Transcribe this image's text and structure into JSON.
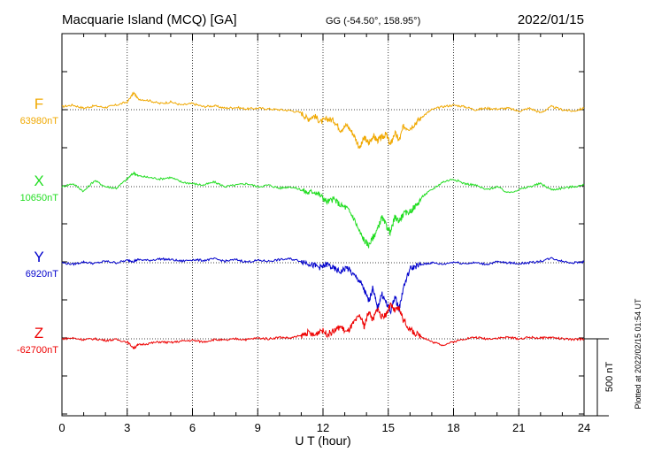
{
  "header": {
    "station": "Macquarie Island (MCQ)  [GA]",
    "coords": "GG (-54.50°, 158.95°)",
    "date": "2022/01/15"
  },
  "footer": {
    "plotted": "Plotted at 2022/02/15 01:54 UT"
  },
  "chart_data": {
    "type": "line",
    "title": "Macquarie Island (MCQ)  [GA]",
    "xlabel": "U T (hour)",
    "ylabel": "",
    "xlim": [
      0,
      24
    ],
    "xticks": [
      0,
      3,
      6,
      9,
      12,
      15,
      18,
      21,
      24
    ],
    "grid": true,
    "scale_bar": {
      "label": "500 nT",
      "value_nT": 500
    },
    "series": [
      {
        "name": "F",
        "baseline_label": "63980nT",
        "baseline_nT": 63980,
        "color": "#f0a800",
        "x": [
          0,
          0.5,
          1,
          1.5,
          2,
          2.5,
          3,
          3.3,
          3.5,
          4,
          4.5,
          5,
          5.5,
          6,
          6.5,
          7,
          7.5,
          8,
          8.5,
          9,
          9.5,
          10,
          10.5,
          11,
          11.3,
          11.6,
          11.9,
          12.2,
          12.5,
          12.8,
          13.1,
          13.4,
          13.7,
          13.9,
          14.1,
          14.3,
          14.5,
          14.7,
          14.9,
          15.1,
          15.3,
          15.5,
          15.7,
          16,
          16.3,
          16.6,
          17,
          17.5,
          18,
          18.5,
          19,
          19.5,
          20,
          20.5,
          21,
          21.5,
          22,
          22.5,
          23,
          23.5,
          24
        ],
        "y": [
          20,
          30,
          10,
          25,
          15,
          30,
          50,
          110,
          70,
          60,
          40,
          50,
          30,
          40,
          20,
          25,
          10,
          15,
          5,
          10,
          5,
          0,
          -5,
          -20,
          -60,
          -40,
          -80,
          -60,
          -70,
          -130,
          -100,
          -160,
          -250,
          -180,
          -220,
          -170,
          -200,
          -180,
          -160,
          -230,
          -150,
          -200,
          -110,
          -120,
          -80,
          -40,
          0,
          20,
          30,
          20,
          0,
          10,
          5,
          10,
          -10,
          10,
          -20,
          20,
          0,
          -10,
          10
        ]
      },
      {
        "name": "X",
        "baseline_label": "10650nT",
        "baseline_nT": 10650,
        "color": "#22dd22",
        "x": [
          0,
          0.5,
          1,
          1.5,
          2,
          2.5,
          3,
          3.3,
          3.5,
          4,
          4.5,
          5,
          5.5,
          6,
          6.5,
          7,
          7.5,
          8,
          8.5,
          9,
          9.5,
          10,
          10.5,
          11,
          11.3,
          11.6,
          11.9,
          12.2,
          12.5,
          12.8,
          13.1,
          13.4,
          13.7,
          13.9,
          14.1,
          14.3,
          14.5,
          14.7,
          14.9,
          15.1,
          15.3,
          15.5,
          15.7,
          16,
          16.3,
          16.6,
          17,
          17.5,
          18,
          18.5,
          19,
          19.5,
          20,
          20.5,
          21,
          21.5,
          22,
          22.5,
          23,
          23.5,
          24
        ],
        "y": [
          0,
          20,
          -30,
          40,
          0,
          -10,
          50,
          90,
          70,
          60,
          50,
          60,
          30,
          20,
          10,
          30,
          0,
          10,
          20,
          0,
          10,
          -10,
          0,
          -20,
          -40,
          -30,
          -60,
          -100,
          -80,
          -120,
          -140,
          -200,
          -300,
          -350,
          -380,
          -330,
          -280,
          -200,
          -250,
          -300,
          -200,
          -220,
          -180,
          -160,
          -120,
          -60,
          -20,
          30,
          50,
          20,
          10,
          -20,
          0,
          -40,
          -20,
          0,
          20,
          -20,
          -10,
          0,
          10
        ]
      },
      {
        "name": "Y",
        "baseline_label": "6920nT",
        "baseline_nT": 6920,
        "color": "#0000cc",
        "x": [
          0,
          0.5,
          1,
          1.5,
          2,
          2.5,
          3,
          3.3,
          3.5,
          4,
          4.5,
          5,
          5.5,
          6,
          6.5,
          7,
          7.5,
          8,
          8.5,
          9,
          9.5,
          10,
          10.5,
          11,
          11.3,
          11.6,
          11.9,
          12.2,
          12.5,
          12.8,
          13.1,
          13.4,
          13.7,
          13.9,
          14.1,
          14.3,
          14.5,
          14.7,
          14.9,
          15.1,
          15.3,
          15.5,
          15.7,
          16,
          16.3,
          16.6,
          17,
          17.5,
          18,
          18.5,
          19,
          19.5,
          20,
          20.5,
          21,
          21.5,
          22,
          22.5,
          23,
          23.5,
          24
        ],
        "y": [
          0,
          -10,
          5,
          -5,
          10,
          0,
          15,
          10,
          20,
          15,
          25,
          20,
          10,
          20,
          15,
          25,
          10,
          20,
          5,
          15,
          10,
          20,
          25,
          10,
          0,
          -20,
          -30,
          -10,
          -40,
          -60,
          -30,
          -80,
          -120,
          -180,
          -250,
          -160,
          -300,
          -200,
          -260,
          -320,
          -220,
          -300,
          -160,
          -40,
          -20,
          -10,
          0,
          -10,
          5,
          -5,
          0,
          -10,
          5,
          0,
          -5,
          0,
          10,
          30,
          10,
          0,
          5
        ]
      },
      {
        "name": "Z",
        "baseline_label": "-62700nT",
        "baseline_nT": -62700,
        "color": "#ee0000",
        "x": [
          0,
          0.5,
          1,
          1.5,
          2,
          2.5,
          3,
          3.3,
          3.5,
          4,
          4.5,
          5,
          5.5,
          6,
          6.5,
          7,
          7.5,
          8,
          8.5,
          9,
          9.5,
          10,
          10.5,
          11,
          11.3,
          11.6,
          11.9,
          12.2,
          12.5,
          12.8,
          13.1,
          13.4,
          13.7,
          13.9,
          14.1,
          14.3,
          14.5,
          14.7,
          14.9,
          15.1,
          15.3,
          15.5,
          15.7,
          16,
          16.3,
          16.6,
          17,
          17.5,
          18,
          18.5,
          19,
          19.5,
          20,
          20.5,
          21,
          21.5,
          22,
          22.5,
          23,
          23.5,
          24
        ],
        "y": [
          0,
          5,
          -5,
          0,
          -10,
          -5,
          -20,
          -60,
          -40,
          -30,
          -20,
          -25,
          -15,
          -10,
          -20,
          -5,
          -10,
          0,
          -5,
          5,
          0,
          10,
          5,
          20,
          40,
          20,
          60,
          30,
          50,
          80,
          40,
          100,
          150,
          80,
          180,
          120,
          200,
          140,
          160,
          220,
          180,
          200,
          120,
          60,
          30,
          10,
          -20,
          -40,
          -20,
          0,
          10,
          0,
          5,
          10,
          0,
          10,
          5,
          10,
          0,
          -5,
          0
        ]
      }
    ]
  }
}
